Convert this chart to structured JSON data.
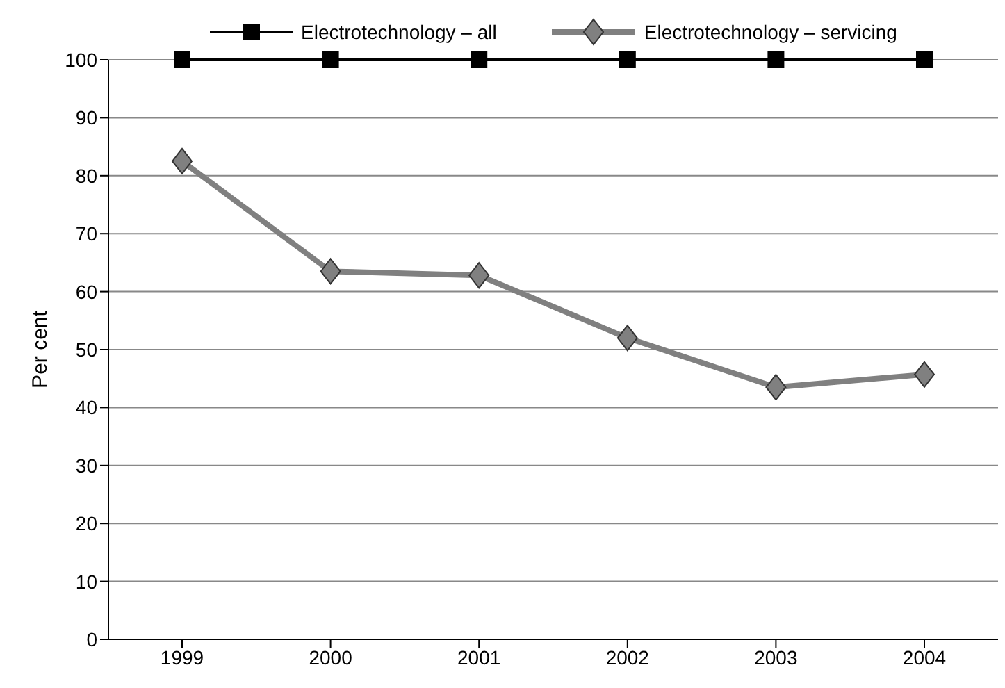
{
  "chart_data": {
    "type": "line",
    "ylabel": "Per cent",
    "categories": [
      "1999",
      "2000",
      "2001",
      "2002",
      "2003",
      "2004"
    ],
    "series": [
      {
        "name": "Electrotechnology – all",
        "color": "#000000",
        "marker": "square",
        "values": [
          100,
          100,
          100,
          100,
          100,
          100
        ]
      },
      {
        "name": "Electrotechnology – servicing",
        "color": "#808080",
        "marker": "diamond",
        "values": [
          82.5,
          63.5,
          62.8,
          52,
          43.5,
          45.7
        ]
      }
    ],
    "ylim": [
      0,
      100
    ],
    "yticks": [
      0,
      10,
      20,
      30,
      40,
      50,
      60,
      70,
      80,
      90,
      100
    ],
    "grid": "y",
    "legend": "top"
  }
}
